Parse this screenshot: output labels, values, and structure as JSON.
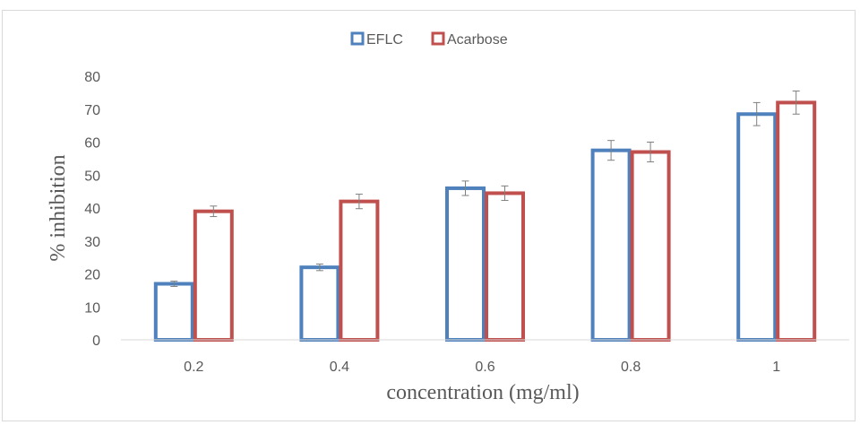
{
  "chart_data": {
    "type": "bar",
    "title": "",
    "xlabel": "concentration (mg/ml)",
    "ylabel": "% inhibition",
    "categories": [
      "0.2",
      "0.4",
      "0.6",
      "0.8",
      "1"
    ],
    "ylim": [
      0,
      80
    ],
    "yticks": [
      "0",
      "10",
      "20",
      "30",
      "40",
      "50",
      "60",
      "70",
      "80"
    ],
    "grid": false,
    "legend_position": "top",
    "bar_style": "outlined",
    "series": [
      {
        "name": "EFLC",
        "color": "#4f81bd",
        "values": [
          17,
          22,
          46,
          57.5,
          68.5
        ],
        "errors": [
          0.8,
          1,
          2.2,
          3,
          3.5
        ]
      },
      {
        "name": "Acarbose",
        "color": "#c0504d",
        "values": [
          39,
          42,
          44.5,
          57,
          72
        ],
        "errors": [
          1.6,
          2.2,
          2.2,
          3,
          3.5
        ]
      }
    ]
  }
}
